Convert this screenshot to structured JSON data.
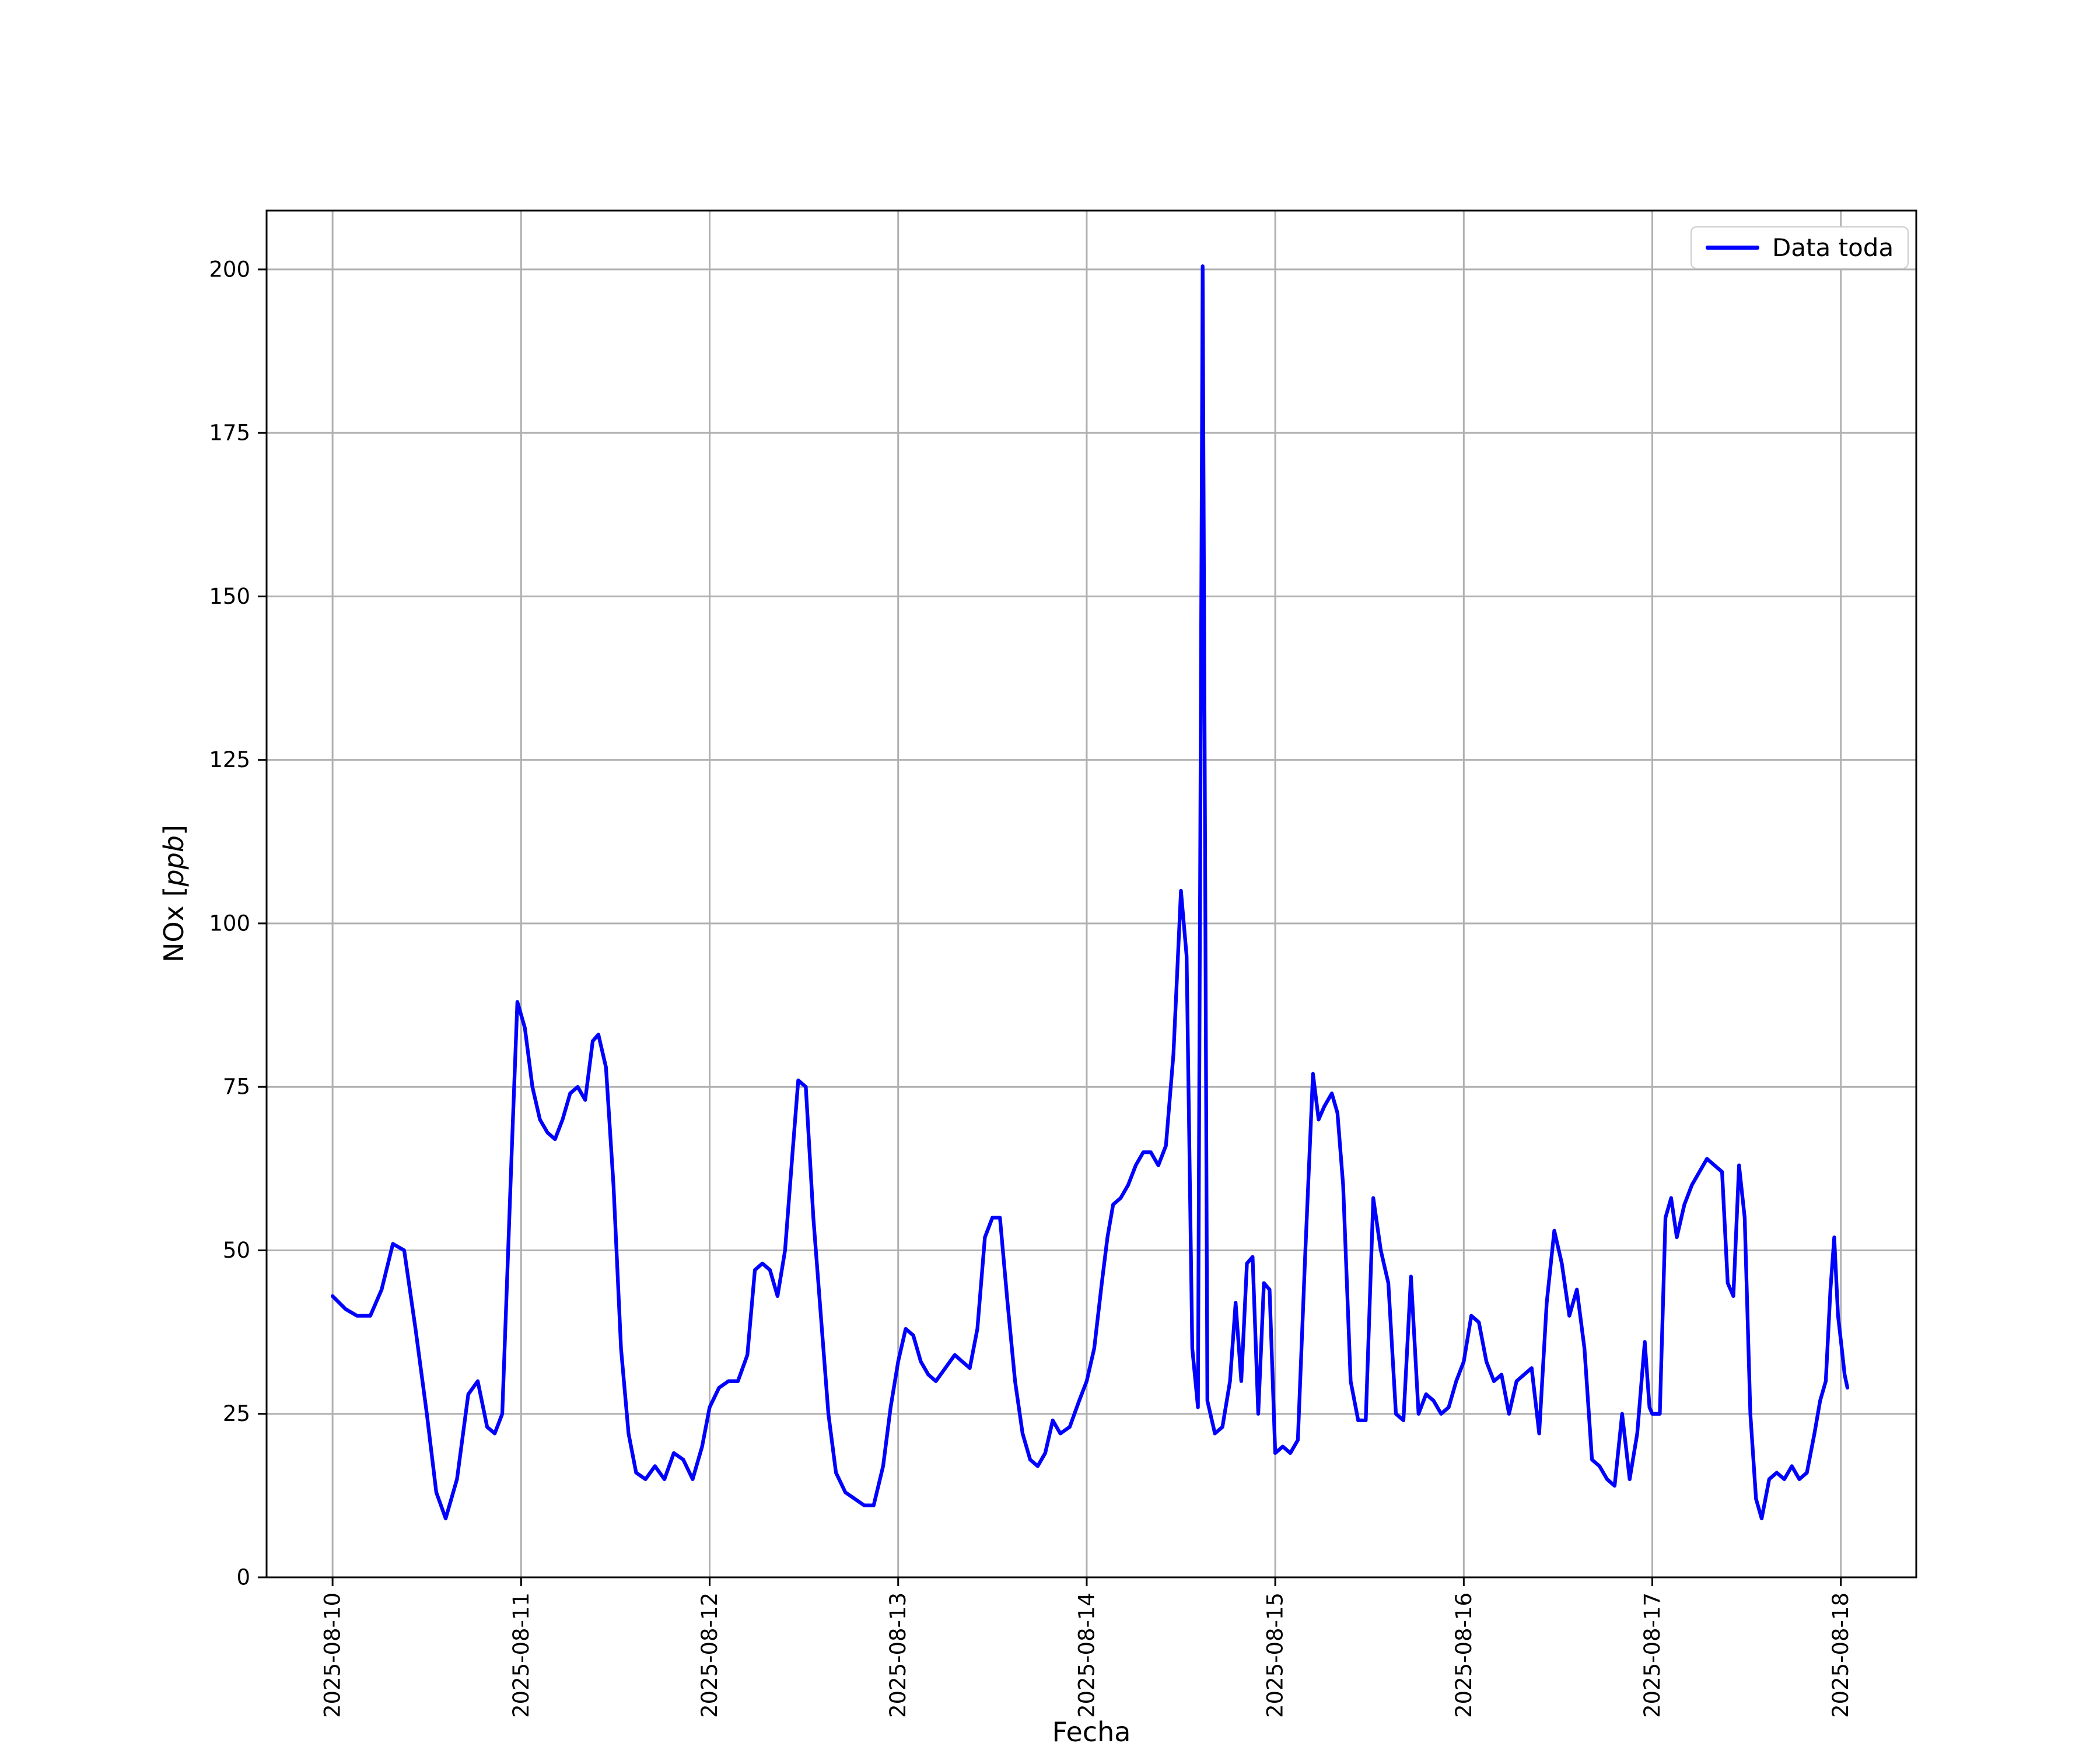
{
  "figure": {
    "background": "#ffffff"
  },
  "chart_data": {
    "type": "line",
    "title": "",
    "xlabel": "Fecha",
    "ylabel": "NOx [ppb]",
    "ylabel_parts": {
      "prefix": "NOx [",
      "italic": "ppb",
      "suffix": "]"
    },
    "legend": [
      "Data toda"
    ],
    "legend_position": "upper right",
    "grid": true,
    "grid_color": "#b0b0b0",
    "color": "#0000ff",
    "x_unit": "days since 2025-08-10",
    "xlim_days": [
      -0.35,
      8.4
    ],
    "ylim": [
      0,
      209
    ],
    "x_tick_days": [
      0,
      1,
      2,
      3,
      4,
      5,
      6,
      7,
      8
    ],
    "x_ticklabels": [
      "2025-08-10",
      "2025-08-11",
      "2025-08-12",
      "2025-08-13",
      "2025-08-14",
      "2025-08-15",
      "2025-08-16",
      "2025-08-17",
      "2025-08-18"
    ],
    "y_ticks": [
      0,
      25,
      50,
      75,
      100,
      125,
      150,
      175,
      200
    ],
    "points": [
      [
        0.0,
        43
      ],
      [
        0.07,
        41
      ],
      [
        0.13,
        40
      ],
      [
        0.2,
        40
      ],
      [
        0.26,
        44
      ],
      [
        0.32,
        51
      ],
      [
        0.38,
        50
      ],
      [
        0.44,
        38
      ],
      [
        0.5,
        25
      ],
      [
        0.55,
        13
      ],
      [
        0.6,
        9
      ],
      [
        0.66,
        15
      ],
      [
        0.72,
        28
      ],
      [
        0.77,
        30
      ],
      [
        0.82,
        23
      ],
      [
        0.86,
        22
      ],
      [
        0.9,
        25
      ],
      [
        0.95,
        65
      ],
      [
        0.98,
        88
      ],
      [
        1.02,
        84
      ],
      [
        1.06,
        75
      ],
      [
        1.1,
        70
      ],
      [
        1.14,
        68
      ],
      [
        1.18,
        67
      ],
      [
        1.22,
        70
      ],
      [
        1.26,
        74
      ],
      [
        1.3,
        75
      ],
      [
        1.34,
        73
      ],
      [
        1.38,
        82
      ],
      [
        1.41,
        83
      ],
      [
        1.45,
        78
      ],
      [
        1.49,
        60
      ],
      [
        1.53,
        35
      ],
      [
        1.57,
        22
      ],
      [
        1.61,
        16
      ],
      [
        1.66,
        15
      ],
      [
        1.71,
        17
      ],
      [
        1.76,
        15
      ],
      [
        1.81,
        19
      ],
      [
        1.86,
        18
      ],
      [
        1.91,
        15
      ],
      [
        1.96,
        20
      ],
      [
        2.0,
        26
      ],
      [
        2.05,
        29
      ],
      [
        2.1,
        30
      ],
      [
        2.15,
        30
      ],
      [
        2.2,
        34
      ],
      [
        2.24,
        47
      ],
      [
        2.28,
        48
      ],
      [
        2.32,
        47
      ],
      [
        2.36,
        43
      ],
      [
        2.4,
        50
      ],
      [
        2.44,
        65
      ],
      [
        2.47,
        76
      ],
      [
        2.51,
        75
      ],
      [
        2.55,
        55
      ],
      [
        2.59,
        40
      ],
      [
        2.63,
        25
      ],
      [
        2.67,
        16
      ],
      [
        2.72,
        13
      ],
      [
        2.77,
        12
      ],
      [
        2.82,
        11
      ],
      [
        2.87,
        11
      ],
      [
        2.92,
        17
      ],
      [
        2.96,
        26
      ],
      [
        3.0,
        33
      ],
      [
        3.04,
        38
      ],
      [
        3.08,
        37
      ],
      [
        3.12,
        33
      ],
      [
        3.16,
        31
      ],
      [
        3.2,
        30
      ],
      [
        3.25,
        32
      ],
      [
        3.3,
        34
      ],
      [
        3.34,
        33
      ],
      [
        3.38,
        32
      ],
      [
        3.42,
        38
      ],
      [
        3.46,
        52
      ],
      [
        3.5,
        55
      ],
      [
        3.54,
        55
      ],
      [
        3.58,
        42
      ],
      [
        3.62,
        30
      ],
      [
        3.66,
        22
      ],
      [
        3.7,
        18
      ],
      [
        3.74,
        17
      ],
      [
        3.78,
        19
      ],
      [
        3.82,
        24
      ],
      [
        3.86,
        22
      ],
      [
        3.91,
        23
      ],
      [
        3.96,
        27
      ],
      [
        4.0,
        30
      ],
      [
        4.04,
        35
      ],
      [
        4.08,
        45
      ],
      [
        4.11,
        52
      ],
      [
        4.14,
        57
      ],
      [
        4.18,
        58
      ],
      [
        4.22,
        60
      ],
      [
        4.26,
        63
      ],
      [
        4.3,
        65
      ],
      [
        4.34,
        65
      ],
      [
        4.38,
        63
      ],
      [
        4.42,
        66
      ],
      [
        4.46,
        80
      ],
      [
        4.5,
        105
      ],
      [
        4.53,
        95
      ],
      [
        4.56,
        35
      ],
      [
        4.59,
        26
      ],
      [
        4.615,
        200.5
      ],
      [
        4.64,
        27
      ],
      [
        4.68,
        22
      ],
      [
        4.72,
        23
      ],
      [
        4.76,
        30
      ],
      [
        4.79,
        42
      ],
      [
        4.82,
        30
      ],
      [
        4.85,
        48
      ],
      [
        4.88,
        49
      ],
      [
        4.91,
        25
      ],
      [
        4.94,
        45
      ],
      [
        4.97,
        44
      ],
      [
        5.0,
        19
      ],
      [
        5.04,
        20
      ],
      [
        5.08,
        19
      ],
      [
        5.12,
        21
      ],
      [
        5.16,
        50
      ],
      [
        5.2,
        77
      ],
      [
        5.23,
        70
      ],
      [
        5.26,
        72
      ],
      [
        5.3,
        74
      ],
      [
        5.33,
        71
      ],
      [
        5.36,
        60
      ],
      [
        5.4,
        30
      ],
      [
        5.44,
        24
      ],
      [
        5.48,
        24
      ],
      [
        5.52,
        58
      ],
      [
        5.56,
        50
      ],
      [
        5.6,
        45
      ],
      [
        5.64,
        25
      ],
      [
        5.68,
        24
      ],
      [
        5.72,
        46
      ],
      [
        5.76,
        25
      ],
      [
        5.8,
        28
      ],
      [
        5.84,
        27
      ],
      [
        5.88,
        25
      ],
      [
        5.92,
        26
      ],
      [
        5.96,
        30
      ],
      [
        6.0,
        33
      ],
      [
        6.04,
        40
      ],
      [
        6.08,
        39
      ],
      [
        6.12,
        33
      ],
      [
        6.16,
        30
      ],
      [
        6.2,
        31
      ],
      [
        6.24,
        25
      ],
      [
        6.28,
        30
      ],
      [
        6.32,
        31
      ],
      [
        6.36,
        32
      ],
      [
        6.4,
        22
      ],
      [
        6.44,
        42
      ],
      [
        6.48,
        53
      ],
      [
        6.52,
        48
      ],
      [
        6.56,
        40
      ],
      [
        6.6,
        44
      ],
      [
        6.64,
        35
      ],
      [
        6.68,
        18
      ],
      [
        6.72,
        17
      ],
      [
        6.76,
        15
      ],
      [
        6.8,
        14
      ],
      [
        6.84,
        25
      ],
      [
        6.88,
        15
      ],
      [
        6.92,
        22
      ],
      [
        6.96,
        36
      ],
      [
        6.985,
        26
      ],
      [
        7.0,
        25
      ],
      [
        7.04,
        25
      ],
      [
        7.07,
        55
      ],
      [
        7.1,
        58
      ],
      [
        7.13,
        52
      ],
      [
        7.17,
        57
      ],
      [
        7.21,
        60
      ],
      [
        7.25,
        62
      ],
      [
        7.29,
        64
      ],
      [
        7.33,
        63
      ],
      [
        7.37,
        62
      ],
      [
        7.4,
        45
      ],
      [
        7.43,
        43
      ],
      [
        7.46,
        63
      ],
      [
        7.49,
        55
      ],
      [
        7.52,
        25
      ],
      [
        7.55,
        12
      ],
      [
        7.58,
        9
      ],
      [
        7.62,
        15
      ],
      [
        7.66,
        16
      ],
      [
        7.7,
        15
      ],
      [
        7.74,
        17
      ],
      [
        7.78,
        15
      ],
      [
        7.82,
        16
      ],
      [
        7.86,
        22
      ],
      [
        7.89,
        27
      ],
      [
        7.92,
        30
      ],
      [
        7.945,
        44
      ],
      [
        7.965,
        52
      ],
      [
        7.985,
        40
      ],
      [
        8.005,
        35
      ],
      [
        8.02,
        31
      ],
      [
        8.035,
        29
      ]
    ]
  }
}
